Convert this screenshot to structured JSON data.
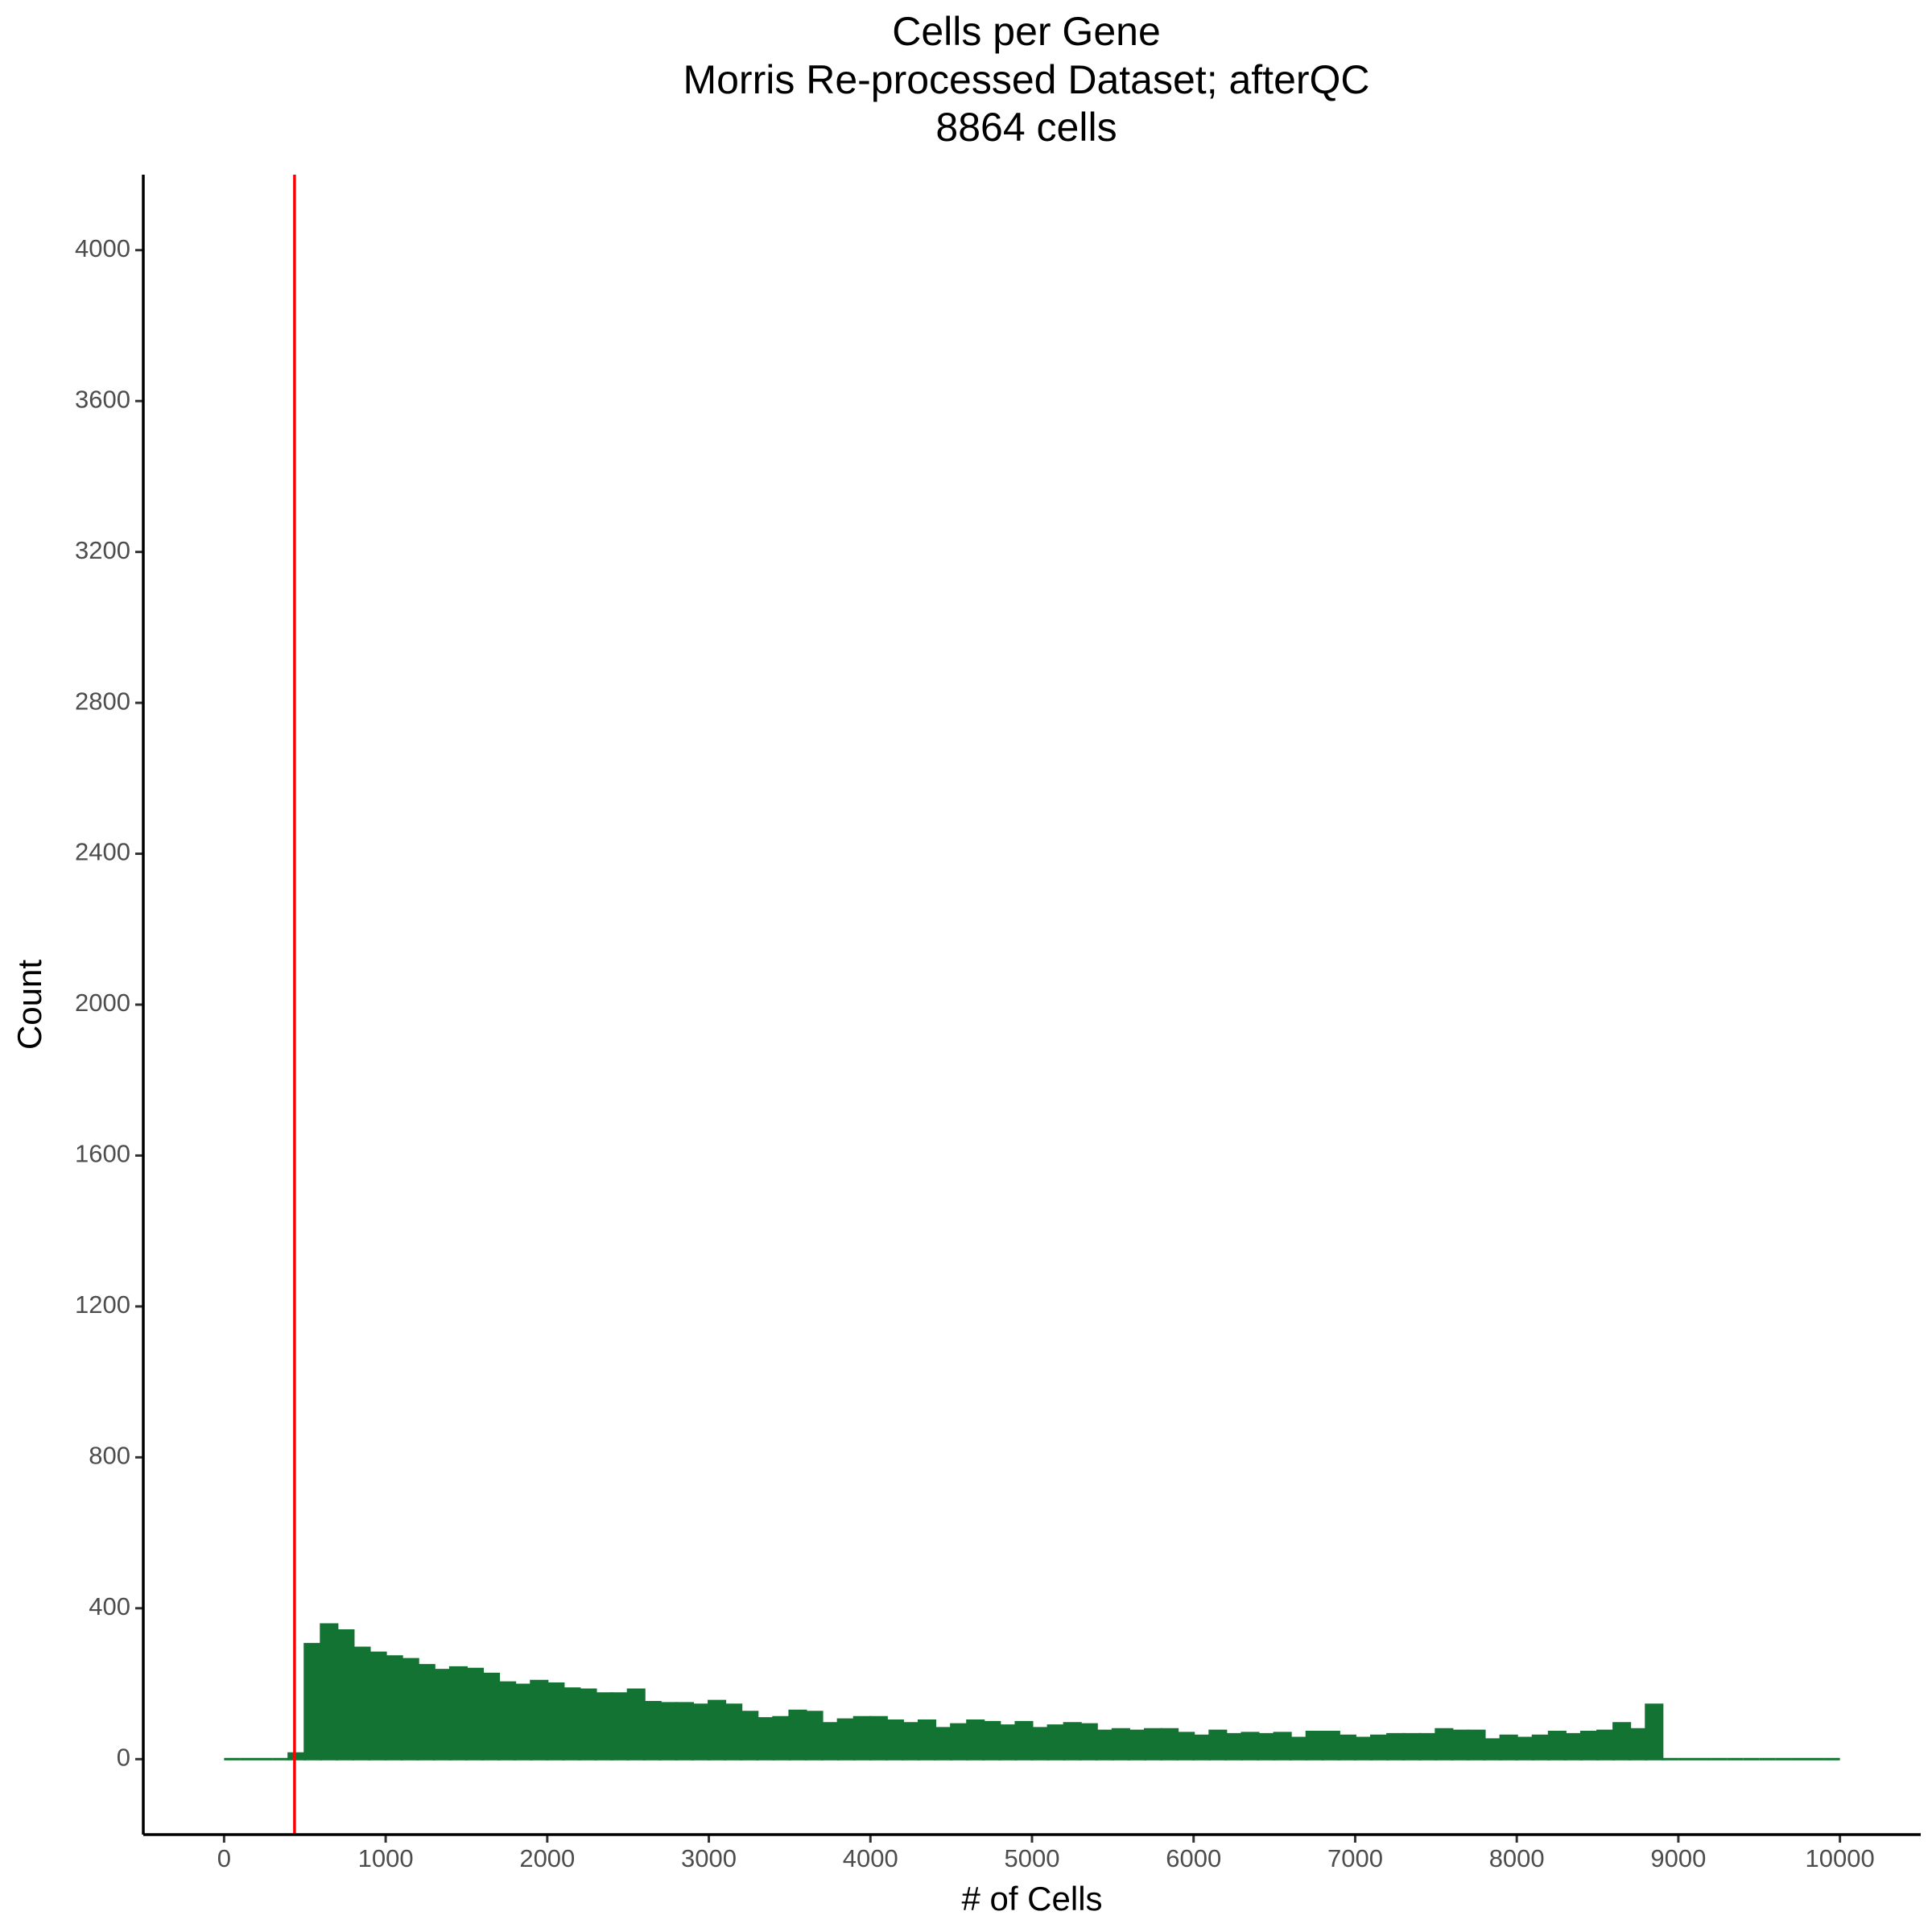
{
  "chart_data": {
    "type": "histogram",
    "title": [
      "Cells per Gene",
      "Morris Re-processed Dataset; afterQC",
      "8864 cells"
    ],
    "x_label": "# of Cells",
    "y_label": "Count",
    "color": "#137333",
    "bins": [
      0,
      100,
      200,
      300,
      400,
      500,
      600,
      700,
      800,
      900,
      1000,
      1100,
      1200,
      1300,
      1400,
      1500,
      1600,
      1700,
      1800,
      1900,
      2000,
      2100,
      2200,
      2300,
      2400,
      2500,
      2600,
      2700,
      2800,
      2900,
      3000,
      3100,
      3200,
      3300,
      3400,
      3500,
      3600,
      3700,
      3800,
      3900,
      4000,
      4100,
      4200,
      4300,
      4400,
      4500,
      4600,
      4700,
      4800,
      4900,
      5000,
      5100,
      5200,
      5300,
      5400,
      5500,
      5600,
      5700,
      5800,
      5900,
      6000,
      6100,
      6200,
      6300,
      6400,
      6500,
      6600,
      6700,
      6800,
      6900,
      7000,
      7100,
      7200,
      7300,
      7400,
      7500,
      7600,
      7700,
      7800,
      7900,
      8000,
      8100,
      8200,
      8300,
      8400,
      8500,
      8600,
      8700,
      8800,
      8900,
      9000,
      9100,
      9200,
      9300,
      9400,
      9500,
      9600,
      9700,
      9800,
      9900,
      10000
    ],
    "values": [
      0,
      0,
      0,
      0,
      15,
      305,
      357,
      341,
      295,
      282,
      272,
      265,
      249,
      236,
      243,
      239,
      226,
      203,
      197,
      207,
      200,
      187,
      184,
      174,
      174,
      184,
      151,
      148,
      148,
      144,
      154,
      144,
      125,
      108,
      111,
      128,
      125,
      95,
      105,
      111,
      111,
      102,
      95,
      102,
      82,
      92,
      102,
      98,
      89,
      98,
      82,
      89,
      95,
      92,
      75,
      79,
      75,
      79,
      79,
      69,
      62,
      75,
      66,
      69,
      66,
      69,
      56,
      72,
      72,
      62,
      56,
      62,
      66,
      66,
      66,
      79,
      75,
      75,
      52,
      62,
      56,
      62,
      72,
      66,
      72,
      75,
      95,
      79,
      144,
      0,
      0,
      0,
      0,
      0,
      0,
      0,
      0,
      0,
      0,
      0,
      0
    ],
    "vline": {
      "value": 436,
      "color": "#ff0000"
    },
    "xlim": [
      -500,
      10500
    ],
    "ylim": [
      -200,
      4200
    ],
    "xticks": [
      0,
      1000,
      2000,
      3000,
      4000,
      5000,
      6000,
      7000,
      8000,
      9000,
      10000
    ],
    "yticks": [
      0,
      400,
      800,
      1200,
      1600,
      2000,
      2400,
      2800,
      3200,
      3600,
      4000
    ]
  }
}
